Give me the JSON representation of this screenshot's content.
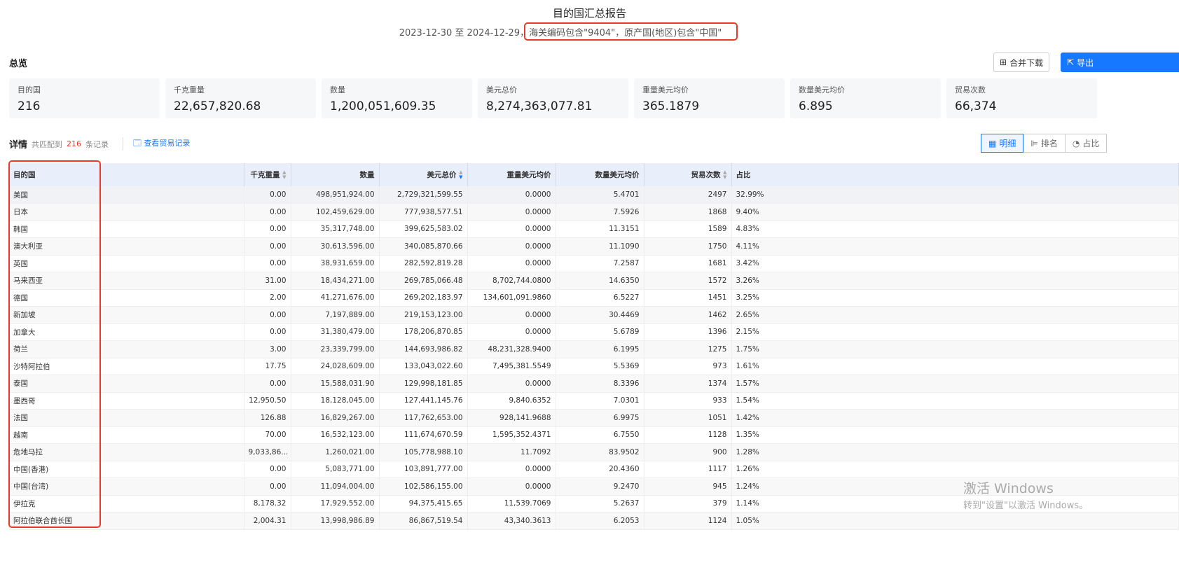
{
  "header": {
    "title": "目的国汇总报告",
    "date_range": "2023-12-30 至 2024-12-29，",
    "filter": "海关编码包含\"9404\"，原产国(地区)包含\"中国\""
  },
  "overview": {
    "label": "总览",
    "merge_download": "合并下载",
    "export": "导出",
    "cards": [
      {
        "label": "目的国",
        "value": "216"
      },
      {
        "label": "千克重量",
        "value": "22,657,820.68"
      },
      {
        "label": "数量",
        "value": "1,200,051,609.35"
      },
      {
        "label": "美元总价",
        "value": "8,274,363,077.81"
      },
      {
        "label": "重量美元均价",
        "value": "365.1879"
      },
      {
        "label": "数量美元均价",
        "value": "6.895"
      },
      {
        "label": "贸易次数",
        "value": "66,374"
      }
    ]
  },
  "detail": {
    "label": "详情",
    "match_prefix": "共匹配到",
    "match_count": "216",
    "match_suffix": "条记录",
    "view_records": "查看贸易记录",
    "views": [
      "明细",
      "排名",
      "占比"
    ]
  },
  "table": {
    "columns": [
      "目的国",
      "千克重量",
      "数量",
      "美元总价",
      "重量美元均价",
      "数量美元均价",
      "贸易次数",
      "占比"
    ],
    "rows": [
      [
        "美国",
        "0.00",
        "498,951,924.00",
        "2,729,321,599.55",
        "0.0000",
        "5.4701",
        "2497",
        "32.99%"
      ],
      [
        "日本",
        "0.00",
        "102,459,629.00",
        "777,938,577.51",
        "0.0000",
        "7.5926",
        "1868",
        "9.40%"
      ],
      [
        "韩国",
        "0.00",
        "35,317,748.00",
        "399,625,583.02",
        "0.0000",
        "11.3151",
        "1589",
        "4.83%"
      ],
      [
        "澳大利亚",
        "0.00",
        "30,613,596.00",
        "340,085,870.66",
        "0.0000",
        "11.1090",
        "1750",
        "4.11%"
      ],
      [
        "英国",
        "0.00",
        "38,931,659.00",
        "282,592,819.28",
        "0.0000",
        "7.2587",
        "1681",
        "3.42%"
      ],
      [
        "马来西亚",
        "31.00",
        "18,434,271.00",
        "269,785,066.48",
        "8,702,744.0800",
        "14.6350",
        "1572",
        "3.26%"
      ],
      [
        "德国",
        "2.00",
        "41,271,676.00",
        "269,202,183.97",
        "134,601,091.9860",
        "6.5227",
        "1451",
        "3.25%"
      ],
      [
        "新加坡",
        "0.00",
        "7,197,889.00",
        "219,153,123.00",
        "0.0000",
        "30.4469",
        "1462",
        "2.65%"
      ],
      [
        "加拿大",
        "0.00",
        "31,380,479.00",
        "178,206,870.85",
        "0.0000",
        "5.6789",
        "1396",
        "2.15%"
      ],
      [
        "荷兰",
        "3.00",
        "23,339,799.00",
        "144,693,986.82",
        "48,231,328.9400",
        "6.1995",
        "1275",
        "1.75%"
      ],
      [
        "沙特阿拉伯",
        "17.75",
        "24,028,609.00",
        "133,043,022.60",
        "7,495,381.5549",
        "5.5369",
        "973",
        "1.61%"
      ],
      [
        "泰国",
        "0.00",
        "15,588,031.90",
        "129,998,181.85",
        "0.0000",
        "8.3396",
        "1374",
        "1.57%"
      ],
      [
        "墨西哥",
        "12,950.50",
        "18,128,045.00",
        "127,441,145.76",
        "9,840.6352",
        "7.0301",
        "933",
        "1.54%"
      ],
      [
        "法国",
        "126.88",
        "16,829,267.00",
        "117,762,653.00",
        "928,141.9688",
        "6.9975",
        "1051",
        "1.42%"
      ],
      [
        "越南",
        "70.00",
        "16,532,123.00",
        "111,674,670.59",
        "1,595,352.4371",
        "6.7550",
        "1128",
        "1.35%"
      ],
      [
        "危地马拉",
        "9,033,86...",
        "1,260,021.00",
        "105,778,988.10",
        "11.7092",
        "83.9502",
        "900",
        "1.28%"
      ],
      [
        "中国(香港)",
        "0.00",
        "5,083,771.00",
        "103,891,777.00",
        "0.0000",
        "20.4360",
        "1117",
        "1.26%"
      ],
      [
        "中国(台湾)",
        "0.00",
        "11,094,004.00",
        "102,586,155.00",
        "0.0000",
        "9.2470",
        "945",
        "1.24%"
      ],
      [
        "伊拉克",
        "8,178.32",
        "17,929,552.00",
        "94,375,415.65",
        "11,539.7069",
        "5.2637",
        "379",
        "1.14%"
      ],
      [
        "阿拉伯联合酋长国",
        "2,004.31",
        "13,998,986.89",
        "86,867,519.54",
        "43,340.3613",
        "6.2053",
        "1124",
        "1.05%"
      ]
    ]
  },
  "watermark": {
    "line1": "激活 Windows",
    "line2": "转到\"设置\"以激活 Windows。"
  },
  "colors": {
    "accent": "#1677ff",
    "highlight": "#e8392a"
  }
}
